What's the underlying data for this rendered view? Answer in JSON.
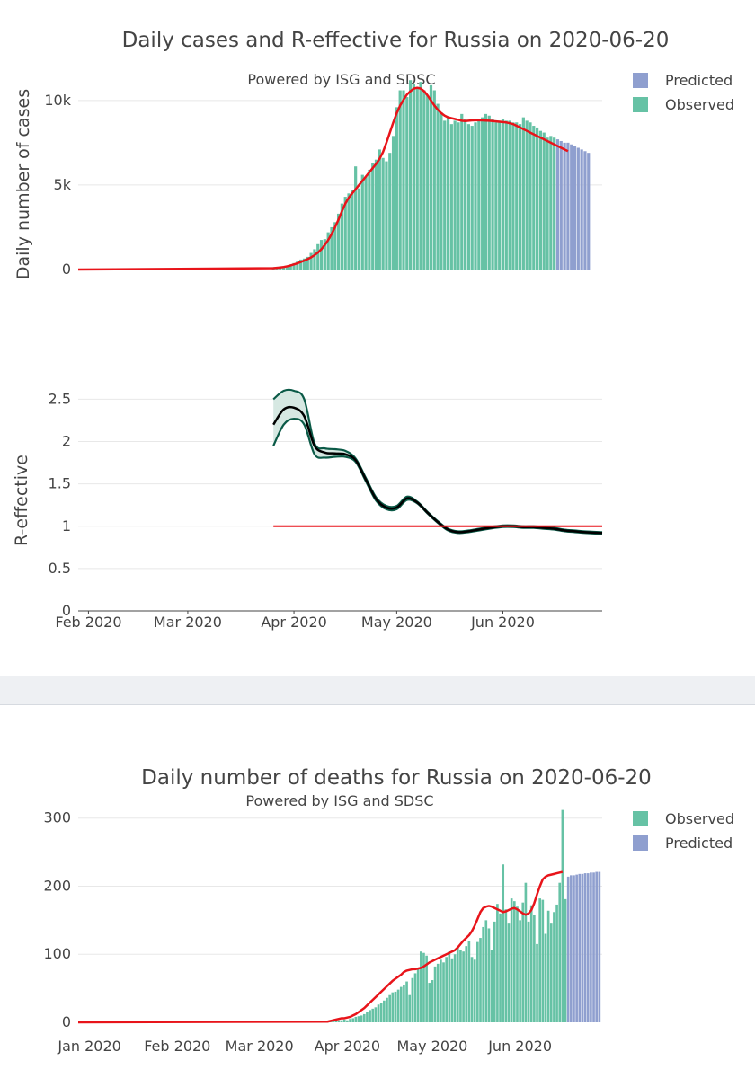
{
  "chart_data": [
    {
      "id": "cases",
      "type": "bar",
      "title": "Daily cases and R-effective for Russia on 2020-06-20",
      "subtitle": "Powered by ISG and SDSC",
      "ylabel": "Daily number of cases",
      "ylim": [
        0,
        11000
      ],
      "y_ticks": [
        {
          "value": 0,
          "label": "0"
        },
        {
          "value": 5000,
          "label": "5k"
        },
        {
          "value": 10000,
          "label": "10k"
        }
      ],
      "x_range": [
        "2020-01-29",
        "2020-06-30"
      ],
      "legend": [
        {
          "name": "Predicted",
          "color": "#8f9fcf"
        },
        {
          "name": "Observed",
          "color": "#66c2a5"
        }
      ],
      "legend_position": "top-right",
      "colors": {
        "observed": "#66c2a5",
        "predicted": "#8f9fcf",
        "trend": "#e8141a"
      },
      "observed": {
        "start": "2020-03-26",
        "values": [
          140,
          160,
          180,
          190,
          230,
          300,
          380,
          470,
          590,
          650,
          750,
          980,
          1200,
          1500,
          1750,
          1800,
          2200,
          2500,
          2800,
          3300,
          3900,
          4300,
          4500,
          4700,
          6100,
          4800,
          5600,
          5500,
          5900,
          6300,
          6500,
          7100,
          6600,
          6400,
          6900,
          7900,
          9600,
          10600,
          10600,
          10200,
          11200,
          11000,
          10800,
          11100,
          10600,
          10300,
          10900,
          10600,
          9800,
          9300,
          8800,
          9000,
          8600,
          8800,
          8700,
          9200,
          8900,
          8600,
          8500,
          8700,
          8800,
          9000,
          9200,
          9100,
          8900,
          8700,
          8800,
          8900,
          8800,
          8800,
          8700,
          8700,
          8600,
          9000,
          8800,
          8700,
          8500,
          8400,
          8200,
          8100,
          7800,
          7900,
          7800
        ]
      },
      "predicted": {
        "start": "2020-06-17",
        "values": [
          7700,
          7600,
          7500,
          7500,
          7400,
          7300,
          7200,
          7100,
          7000,
          6900
        ]
      },
      "trend": {
        "start": "2020-03-26",
        "values": [
          80,
          100,
          120,
          150,
          190,
          240,
          300,
          370,
          450,
          530,
          620,
          720,
          850,
          1000,
          1200,
          1450,
          1750,
          2100,
          2500,
          2950,
          3450,
          3900,
          4250,
          4500,
          4750,
          5000,
          5250,
          5500,
          5750,
          6000,
          6250,
          6550,
          6950,
          7500,
          8100,
          8700,
          9250,
          9700,
          10050,
          10350,
          10550,
          10700,
          10750,
          10700,
          10550,
          10300,
          10000,
          9700,
          9450,
          9250,
          9100,
          9000,
          8950,
          8900,
          8850,
          8800,
          8780,
          8800,
          8820,
          8830,
          8830,
          8820,
          8810,
          8800,
          8780,
          8760,
          8740,
          8720,
          8700,
          8650,
          8600,
          8500,
          8400,
          8300,
          8200,
          8100,
          8000,
          7900,
          7800,
          7700,
          7600,
          7500,
          7400,
          7300,
          7200,
          7100,
          7000
        ]
      },
      "trend_prefix": {
        "from": "2020-01-29",
        "to": "2020-03-26",
        "values": [
          0,
          80
        ]
      }
    },
    {
      "id": "reff",
      "type": "line",
      "ylabel": "R-effective",
      "ylim": [
        0,
        2.6
      ],
      "y_ticks": [
        {
          "value": 0,
          "label": "0"
        },
        {
          "value": 0.5,
          "label": "0.5"
        },
        {
          "value": 1,
          "label": "1"
        },
        {
          "value": 1.5,
          "label": "1.5"
        },
        {
          "value": 2,
          "label": "2"
        },
        {
          "value": 2.5,
          "label": "2.5"
        }
      ],
      "x_range": [
        "2020-01-29",
        "2020-06-30"
      ],
      "x_ticks": [
        {
          "date": "2020-02-01",
          "label": "Feb 2020"
        },
        {
          "date": "2020-03-01",
          "label": "Mar 2020"
        },
        {
          "date": "2020-04-01",
          "label": "Apr 2020"
        },
        {
          "date": "2020-05-01",
          "label": "May 2020"
        },
        {
          "date": "2020-06-01",
          "label": "Jun 2020"
        }
      ],
      "colors": {
        "median": "#000000",
        "bounds": "#0b5a47",
        "band": "#d6e8e2",
        "reference": "#e8141a"
      },
      "reference_line": {
        "value": 1,
        "from": "2020-03-26",
        "to": "2020-06-30"
      },
      "dates": [
        "2020-03-26",
        "2020-03-29",
        "2020-04-01",
        "2020-04-04",
        "2020-04-07",
        "2020-04-10",
        "2020-04-13",
        "2020-04-16",
        "2020-04-19",
        "2020-04-22",
        "2020-04-25",
        "2020-04-28",
        "2020-05-01",
        "2020-05-04",
        "2020-05-07",
        "2020-05-10",
        "2020-05-13",
        "2020-05-16",
        "2020-05-19",
        "2020-05-22",
        "2020-05-25",
        "2020-05-28",
        "2020-06-01",
        "2020-06-04",
        "2020-06-07",
        "2020-06-10",
        "2020-06-13",
        "2020-06-16",
        "2020-06-19",
        "2020-06-22",
        "2020-06-25",
        "2020-06-30"
      ],
      "median": [
        2.2,
        2.38,
        2.4,
        2.3,
        1.95,
        1.87,
        1.86,
        1.85,
        1.78,
        1.55,
        1.32,
        1.22,
        1.22,
        1.33,
        1.28,
        1.16,
        1.05,
        0.96,
        0.93,
        0.94,
        0.96,
        0.98,
        1.0,
        1.0,
        0.99,
        0.99,
        0.98,
        0.97,
        0.95,
        0.94,
        0.93,
        0.92
      ],
      "upper": [
        2.5,
        2.6,
        2.6,
        2.5,
        1.98,
        1.92,
        1.91,
        1.89,
        1.8,
        1.57,
        1.34,
        1.24,
        1.24,
        1.35,
        1.29,
        1.17,
        1.06,
        0.97,
        0.94,
        0.95,
        0.97,
        0.99,
        1.01,
        1.01,
        1.0,
        1.0,
        0.99,
        0.98,
        0.96,
        0.95,
        0.94,
        0.93
      ],
      "lower": [
        1.95,
        2.2,
        2.27,
        2.2,
        1.85,
        1.81,
        1.82,
        1.82,
        1.76,
        1.53,
        1.3,
        1.2,
        1.2,
        1.31,
        1.27,
        1.15,
        1.04,
        0.95,
        0.92,
        0.93,
        0.95,
        0.97,
        0.99,
        0.99,
        0.98,
        0.98,
        0.97,
        0.96,
        0.94,
        0.93,
        0.92,
        0.91
      ]
    },
    {
      "id": "deaths",
      "type": "bar",
      "title": "Daily number of deaths for Russia on 2020-06-20",
      "subtitle": "Powered by ISG and SDSC",
      "ylim": [
        0,
        330
      ],
      "y_ticks": [
        {
          "value": 0,
          "label": "0"
        },
        {
          "value": 100,
          "label": "100"
        },
        {
          "value": 200,
          "label": "200"
        },
        {
          "value": 300,
          "label": "300"
        }
      ],
      "x_range": [
        "2019-12-28",
        "2020-06-30"
      ],
      "x_ticks": [
        {
          "date": "2020-01-01",
          "label": "Jan 2020"
        },
        {
          "date": "2020-02-01",
          "label": "Feb 2020"
        },
        {
          "date": "2020-03-01",
          "label": "Mar 2020"
        },
        {
          "date": "2020-04-01",
          "label": "Apr 2020"
        },
        {
          "date": "2020-05-01",
          "label": "May 2020"
        },
        {
          "date": "2020-06-01",
          "label": "Jun 2020"
        }
      ],
      "legend": [
        {
          "name": "Observed",
          "color": "#66c2a5"
        },
        {
          "name": "Predicted",
          "color": "#8f9fcf"
        }
      ],
      "legend_position": "top-right",
      "colors": {
        "observed": "#66c2a5",
        "predicted": "#8f9fcf",
        "trend": "#e8141a"
      },
      "observed": {
        "start": "2020-03-25",
        "values": [
          1,
          1,
          2,
          2,
          3,
          3,
          4,
          3,
          5,
          6,
          8,
          9,
          10,
          12,
          15,
          18,
          20,
          22,
          26,
          28,
          32,
          36,
          40,
          44,
          45,
          48,
          52,
          55,
          60,
          40,
          65,
          72,
          78,
          104,
          102,
          98,
          58,
          62,
          82,
          86,
          92,
          88,
          96,
          104,
          94,
          100,
          110,
          106,
          104,
          112,
          120,
          96,
          92,
          118,
          124,
          140,
          150,
          138,
          106,
          148,
          174,
          160,
          232,
          166,
          145,
          182,
          178,
          170,
          150,
          176,
          205,
          148,
          172,
          158,
          115,
          182,
          180,
          130,
          164,
          145,
          162,
          173,
          205,
          312,
          181
        ]
      },
      "predicted": {
        "start": "2020-06-18",
        "values": [
          214,
          216,
          216,
          217,
          218,
          218,
          219,
          219,
          220,
          220,
          221,
          221
        ]
      },
      "trend": {
        "start": "2020-03-25",
        "values": [
          1,
          2,
          3,
          4,
          5,
          6,
          6,
          7,
          8,
          10,
          12,
          15,
          18,
          21,
          25,
          29,
          33,
          37,
          41,
          45,
          49,
          53,
          57,
          61,
          64,
          67,
          70,
          74,
          76,
          77,
          78,
          78,
          79,
          80,
          82,
          85,
          88,
          90,
          92,
          94,
          96,
          98,
          100,
          102,
          104,
          106,
          110,
          115,
          120,
          124,
          128,
          134,
          142,
          152,
          162,
          168,
          170,
          171,
          170,
          168,
          166,
          164,
          162,
          163,
          165,
          167,
          168,
          166,
          163,
          160,
          158,
          160,
          165,
          175,
          188,
          200,
          210,
          214,
          216,
          217,
          218,
          219,
          220,
          221
        ]
      },
      "trend_prefix": {
        "from": "2019-12-28",
        "to": "2020-03-25",
        "values": [
          0,
          1
        ]
      }
    }
  ]
}
